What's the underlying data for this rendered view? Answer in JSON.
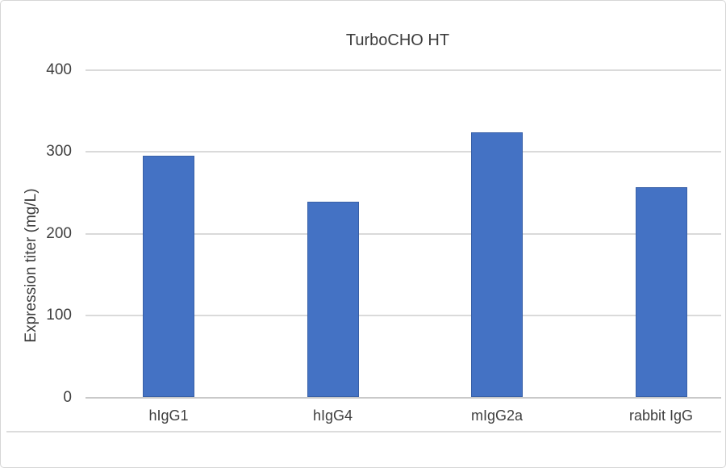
{
  "chart_data": {
    "type": "bar",
    "title": "TurboCHO HT",
    "ylabel": "Expression titer (mg/L)",
    "xlabel": "",
    "categories": [
      "hIgG1",
      "hIgG4",
      "mIgG2a",
      "rabbit IgG"
    ],
    "values": [
      295,
      239,
      324,
      257
    ],
    "ylim": [
      0,
      400
    ],
    "yticks": [
      0,
      100,
      200,
      300,
      400
    ],
    "grid": true,
    "legend": "none",
    "bar_color": "#4472c4",
    "gridline_color": "#dadada"
  }
}
